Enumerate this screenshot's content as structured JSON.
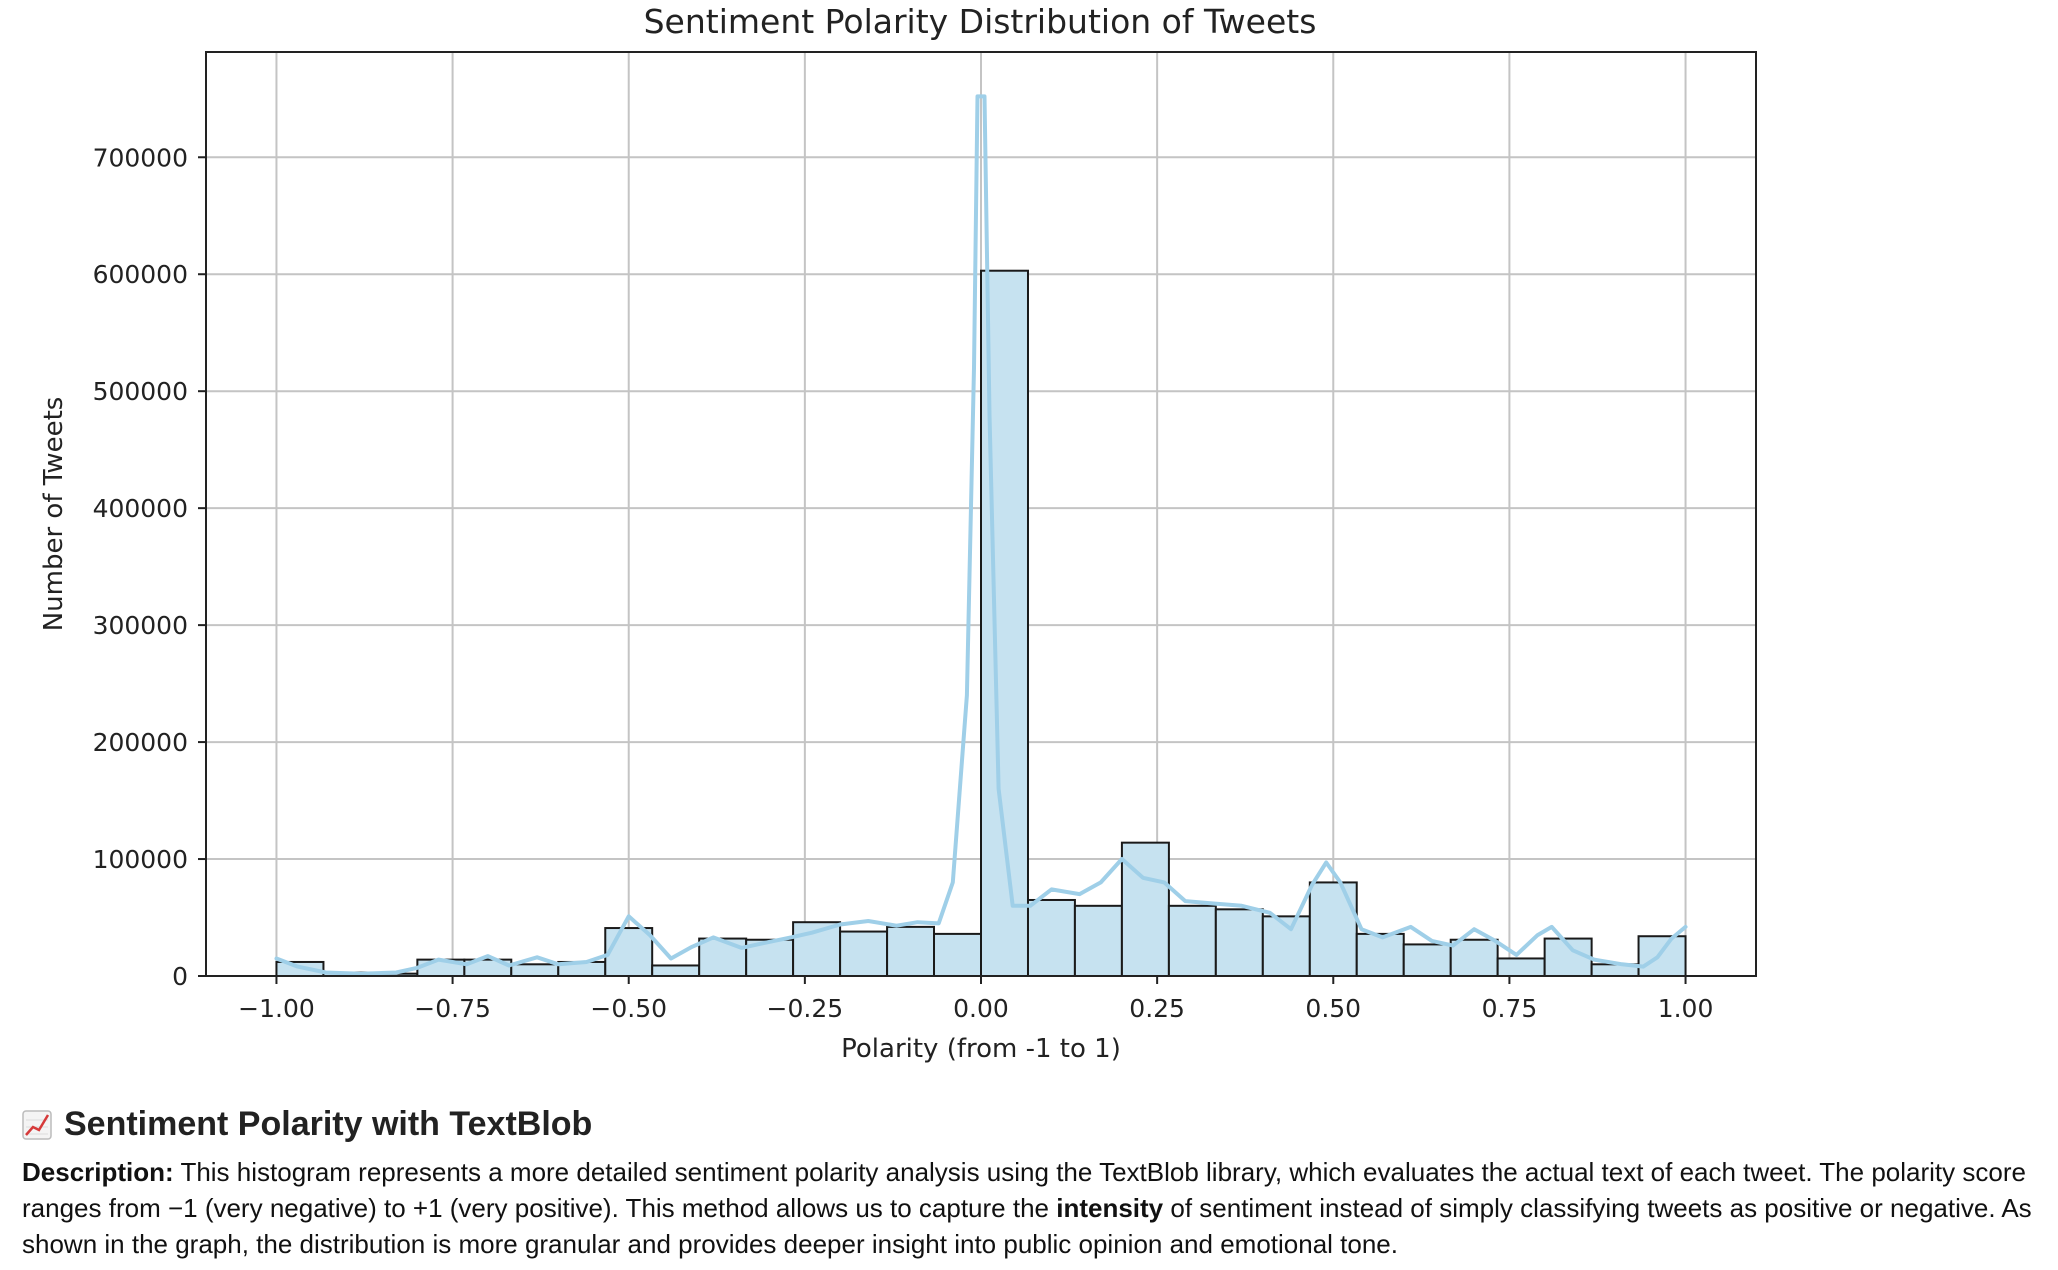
{
  "chart_data": {
    "type": "bar",
    "subtype": "histogram-with-kde",
    "title": "Sentiment Polarity Distribution of Tweets",
    "xlabel": "Polarity (from -1 to 1)",
    "ylabel": "Number of Tweets",
    "xlim": [
      -1.1,
      1.1
    ],
    "ylim": [
      0,
      790000
    ],
    "xticks": [
      -1.0,
      -0.75,
      -0.5,
      -0.25,
      0.0,
      0.25,
      0.5,
      0.75,
      1.0
    ],
    "xtick_labels": [
      "−1.00",
      "−0.75",
      "−0.50",
      "−0.25",
      "0.00",
      "0.25",
      "0.50",
      "0.75",
      "1.00"
    ],
    "yticks": [
      0,
      100000,
      200000,
      300000,
      400000,
      500000,
      600000,
      700000
    ],
    "ytick_labels": [
      "0",
      "100000",
      "200000",
      "300000",
      "400000",
      "500000",
      "600000",
      "700000"
    ],
    "grid": true,
    "bar_color": "#c6e2f0",
    "edge_color": "#1a1a1a",
    "kde_color": "#9fcfe8",
    "bins": [
      {
        "x0": -1.0,
        "x1": -0.9333,
        "count": 12000
      },
      {
        "x0": -0.9333,
        "x1": -0.8667,
        "count": 3000
      },
      {
        "x0": -0.8667,
        "x1": -0.8,
        "count": 2000
      },
      {
        "x0": -0.8,
        "x1": -0.7333,
        "count": 14000
      },
      {
        "x0": -0.7333,
        "x1": -0.6667,
        "count": 14000
      },
      {
        "x0": -0.6667,
        "x1": -0.6,
        "count": 10000
      },
      {
        "x0": -0.6,
        "x1": -0.5333,
        "count": 12000
      },
      {
        "x0": -0.5333,
        "x1": -0.4667,
        "count": 41000
      },
      {
        "x0": -0.4667,
        "x1": -0.4,
        "count": 9000
      },
      {
        "x0": -0.4,
        "x1": -0.3333,
        "count": 32000
      },
      {
        "x0": -0.3333,
        "x1": -0.2667,
        "count": 31000
      },
      {
        "x0": -0.2667,
        "x1": -0.2,
        "count": 46000
      },
      {
        "x0": -0.2,
        "x1": -0.1333,
        "count": 38000
      },
      {
        "x0": -0.1333,
        "x1": -0.0667,
        "count": 42000
      },
      {
        "x0": -0.0667,
        "x1": 0.0,
        "count": 36000
      },
      {
        "x0": 0.0,
        "x1": 0.0667,
        "count": 603000
      },
      {
        "x0": 0.0667,
        "x1": 0.1333,
        "count": 65000
      },
      {
        "x0": 0.1333,
        "x1": 0.2,
        "count": 60000
      },
      {
        "x0": 0.2,
        "x1": 0.2667,
        "count": 114000
      },
      {
        "x0": 0.2667,
        "x1": 0.3333,
        "count": 60000
      },
      {
        "x0": 0.3333,
        "x1": 0.4,
        "count": 57000
      },
      {
        "x0": 0.4,
        "x1": 0.4667,
        "count": 51000
      },
      {
        "x0": 0.4667,
        "x1": 0.5333,
        "count": 80000
      },
      {
        "x0": 0.5333,
        "x1": 0.6,
        "count": 36000
      },
      {
        "x0": 0.6,
        "x1": 0.6667,
        "count": 27000
      },
      {
        "x0": 0.6667,
        "x1": 0.7333,
        "count": 31000
      },
      {
        "x0": 0.7333,
        "x1": 0.8,
        "count": 15000
      },
      {
        "x0": 0.8,
        "x1": 0.8667,
        "count": 32000
      },
      {
        "x0": 0.8667,
        "x1": 0.9333,
        "count": 10000
      },
      {
        "x0": 0.9333,
        "x1": 1.0,
        "count": 34000
      }
    ],
    "kde": [
      [
        -1.0,
        15000
      ],
      [
        -0.97,
        8000
      ],
      [
        -0.93,
        3000
      ],
      [
        -0.88,
        2000
      ],
      [
        -0.83,
        3000
      ],
      [
        -0.8,
        7000
      ],
      [
        -0.77,
        14000
      ],
      [
        -0.73,
        10000
      ],
      [
        -0.7,
        17000
      ],
      [
        -0.67,
        9000
      ],
      [
        -0.63,
        16000
      ],
      [
        -0.6,
        10000
      ],
      [
        -0.56,
        12000
      ],
      [
        -0.53,
        18000
      ],
      [
        -0.5,
        51000
      ],
      [
        -0.47,
        35000
      ],
      [
        -0.44,
        15000
      ],
      [
        -0.41,
        25000
      ],
      [
        -0.38,
        33000
      ],
      [
        -0.34,
        24000
      ],
      [
        -0.31,
        28000
      ],
      [
        -0.27,
        33000
      ],
      [
        -0.24,
        37000
      ],
      [
        -0.2,
        44000
      ],
      [
        -0.16,
        47000
      ],
      [
        -0.12,
        43000
      ],
      [
        -0.09,
        46000
      ],
      [
        -0.06,
        45000
      ],
      [
        -0.04,
        80000
      ],
      [
        -0.02,
        240000
      ],
      [
        -0.01,
        520000
      ],
      [
        -0.005,
        752000
      ],
      [
        0.005,
        752000
      ],
      [
        0.012,
        480000
      ],
      [
        0.025,
        160000
      ],
      [
        0.045,
        60000
      ],
      [
        0.07,
        60000
      ],
      [
        0.1,
        74000
      ],
      [
        0.14,
        70000
      ],
      [
        0.17,
        80000
      ],
      [
        0.2,
        100000
      ],
      [
        0.23,
        84000
      ],
      [
        0.26,
        80000
      ],
      [
        0.29,
        64000
      ],
      [
        0.33,
        62000
      ],
      [
        0.37,
        60000
      ],
      [
        0.41,
        54000
      ],
      [
        0.44,
        40000
      ],
      [
        0.47,
        78000
      ],
      [
        0.49,
        97000
      ],
      [
        0.51,
        80000
      ],
      [
        0.54,
        40000
      ],
      [
        0.57,
        33000
      ],
      [
        0.61,
        42000
      ],
      [
        0.64,
        30000
      ],
      [
        0.67,
        26000
      ],
      [
        0.7,
        40000
      ],
      [
        0.73,
        30000
      ],
      [
        0.76,
        18000
      ],
      [
        0.79,
        35000
      ],
      [
        0.81,
        42000
      ],
      [
        0.84,
        22000
      ],
      [
        0.87,
        14000
      ],
      [
        0.91,
        10000
      ],
      [
        0.94,
        8000
      ],
      [
        0.96,
        16000
      ],
      [
        0.98,
        32000
      ],
      [
        1.0,
        42000
      ]
    ]
  },
  "section": {
    "emoji": "📈",
    "heading": "Sentiment Polarity with TextBlob",
    "description_label": "Description:",
    "description_part1": " This histogram represents a more detailed sentiment polarity analysis using the TextBlob library, which evaluates the actual text of each tweet. The polarity score ranges from −1 (very negative) to +1 (very positive). This method allows us to capture the ",
    "description_bold": "intensity",
    "description_part2": " of sentiment instead of simply classifying tweets as positive or negative. As shown in the graph, the distribution is more granular and provides deeper insight into public opinion and emotional tone."
  }
}
